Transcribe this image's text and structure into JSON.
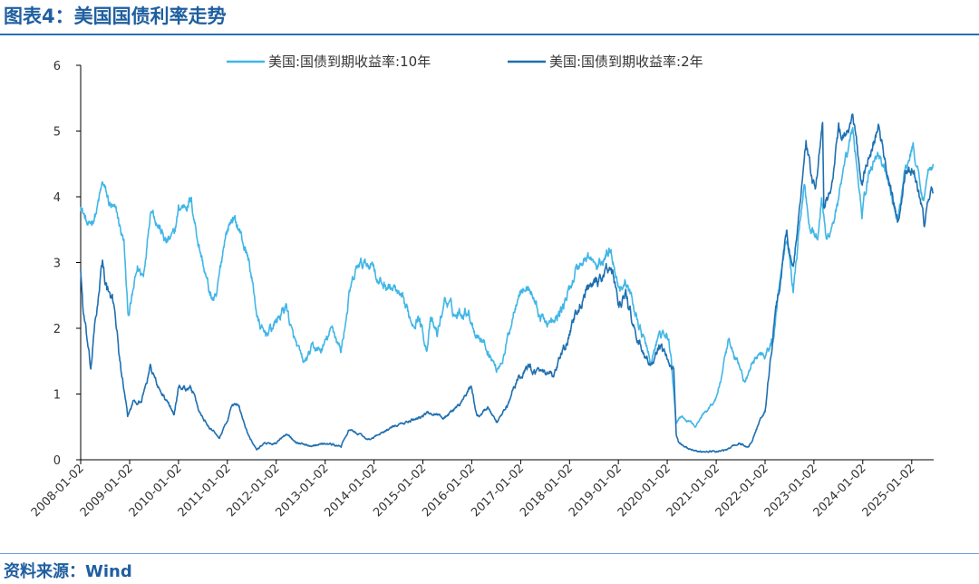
{
  "header": {
    "title": "图表4：美国国债利率走势"
  },
  "footer": {
    "source": "资料来源：Wind"
  },
  "chart_data": {
    "type": "line",
    "title": "图表4：美国国债利率走势",
    "xlabel": "",
    "ylabel": "",
    "xlim": [
      "2008-01-02",
      "2025-06-15"
    ],
    "ylim": [
      0,
      6
    ],
    "yticks": [
      0,
      1,
      2,
      3,
      4,
      5,
      6
    ],
    "xticks": [
      "2008-01-02",
      "2009-01-02",
      "2010-01-02",
      "2011-01-02",
      "2012-01-02",
      "2013-01-02",
      "2014-01-02",
      "2015-01-02",
      "2016-01-02",
      "2017-01-02",
      "2018-01-02",
      "2019-01-02",
      "2020-01-02",
      "2021-01-02",
      "2022-01-02",
      "2023-01-02",
      "2024-01-02",
      "2025-01-02"
    ],
    "grid": false,
    "legend_position": "top",
    "series": [
      {
        "name": "美国:国债到期收益率:10年",
        "color": "#41b6e6",
        "points": [
          [
            "2008-01-02",
            3.9
          ],
          [
            "2008-03-01",
            3.5
          ],
          [
            "2008-05-01",
            3.8
          ],
          [
            "2008-06-15",
            4.2
          ],
          [
            "2008-08-01",
            3.9
          ],
          [
            "2008-10-01",
            3.7
          ],
          [
            "2008-11-20",
            3.3
          ],
          [
            "2008-12-20",
            2.2
          ],
          [
            "2009-01-15",
            2.4
          ],
          [
            "2009-03-01",
            2.9
          ],
          [
            "2009-04-15",
            2.8
          ],
          [
            "2009-06-10",
            3.9
          ],
          [
            "2009-08-01",
            3.6
          ],
          [
            "2009-10-01",
            3.3
          ],
          [
            "2009-12-01",
            3.4
          ],
          [
            "2010-01-02",
            3.8
          ],
          [
            "2010-04-05",
            3.95
          ],
          [
            "2010-06-01",
            3.3
          ],
          [
            "2010-08-25",
            2.5
          ],
          [
            "2010-10-10",
            2.4
          ],
          [
            "2010-12-15",
            3.4
          ],
          [
            "2011-02-10",
            3.7
          ],
          [
            "2011-04-01",
            3.5
          ],
          [
            "2011-06-15",
            3.0
          ],
          [
            "2011-08-20",
            2.1
          ],
          [
            "2011-10-01",
            1.9
          ],
          [
            "2011-12-01",
            2.0
          ],
          [
            "2012-03-20",
            2.35
          ],
          [
            "2012-05-01",
            1.9
          ],
          [
            "2012-07-25",
            1.45
          ],
          [
            "2012-10-01",
            1.7
          ],
          [
            "2012-12-01",
            1.65
          ],
          [
            "2013-03-01",
            2.0
          ],
          [
            "2013-05-01",
            1.65
          ],
          [
            "2013-07-01",
            2.5
          ],
          [
            "2013-09-05",
            2.95
          ],
          [
            "2013-12-31",
            3.0
          ],
          [
            "2014-02-01",
            2.7
          ],
          [
            "2014-06-01",
            2.6
          ],
          [
            "2014-10-15",
            2.1
          ],
          [
            "2014-12-01",
            2.2
          ],
          [
            "2015-01-30",
            1.7
          ],
          [
            "2015-03-01",
            2.1
          ],
          [
            "2015-04-20",
            1.9
          ],
          [
            "2015-06-15",
            2.45
          ],
          [
            "2015-09-01",
            2.2
          ],
          [
            "2015-12-01",
            2.3
          ],
          [
            "2016-01-30",
            1.95
          ],
          [
            "2016-04-01",
            1.8
          ],
          [
            "2016-07-08",
            1.37
          ],
          [
            "2016-09-01",
            1.6
          ],
          [
            "2016-11-15",
            2.3
          ],
          [
            "2016-12-15",
            2.6
          ],
          [
            "2017-03-15",
            2.6
          ],
          [
            "2017-06-01",
            2.15
          ],
          [
            "2017-09-07",
            2.05
          ],
          [
            "2017-12-01",
            2.4
          ],
          [
            "2018-02-20",
            2.9
          ],
          [
            "2018-05-17",
            3.1
          ],
          [
            "2018-08-01",
            2.9
          ],
          [
            "2018-11-08",
            3.24
          ],
          [
            "2019-01-02",
            2.65
          ],
          [
            "2019-03-01",
            2.7
          ],
          [
            "2019-06-01",
            2.1
          ],
          [
            "2019-09-03",
            1.47
          ],
          [
            "2019-11-01",
            1.9
          ],
          [
            "2020-01-02",
            1.88
          ],
          [
            "2020-02-01",
            1.55
          ],
          [
            "2020-03-09",
            0.54
          ],
          [
            "2020-04-01",
            0.65
          ],
          [
            "2020-08-04",
            0.52
          ],
          [
            "2020-10-01",
            0.7
          ],
          [
            "2020-12-31",
            0.93
          ],
          [
            "2021-02-15",
            1.3
          ],
          [
            "2021-03-31",
            1.74
          ],
          [
            "2021-06-01",
            1.55
          ],
          [
            "2021-08-04",
            1.17
          ],
          [
            "2021-11-01",
            1.6
          ],
          [
            "2022-01-02",
            1.63
          ],
          [
            "2022-03-01",
            1.8
          ],
          [
            "2022-05-01",
            2.9
          ],
          [
            "2022-06-14",
            3.48
          ],
          [
            "2022-08-01",
            2.6
          ],
          [
            "2022-10-21",
            4.24
          ],
          [
            "2022-12-01",
            3.6
          ],
          [
            "2023-02-01",
            3.4
          ],
          [
            "2023-03-01",
            4.0
          ],
          [
            "2023-04-05",
            3.3
          ],
          [
            "2023-07-01",
            3.9
          ],
          [
            "2023-10-19",
            5.0
          ],
          [
            "2023-12-27",
            3.79
          ],
          [
            "2024-02-15",
            4.3
          ],
          [
            "2024-04-25",
            4.7
          ],
          [
            "2024-07-01",
            4.3
          ],
          [
            "2024-09-16",
            3.62
          ],
          [
            "2024-11-15",
            4.4
          ],
          [
            "2025-01-13",
            4.79
          ],
          [
            "2025-03-01",
            4.2
          ],
          [
            "2025-04-04",
            4.0
          ],
          [
            "2025-05-20",
            4.55
          ],
          [
            "2025-06-10",
            4.5
          ]
        ]
      },
      {
        "name": "美国:国债到期收益率:2年",
        "color": "#1f6fb0",
        "points": [
          [
            "2008-01-02",
            2.9
          ],
          [
            "2008-01-20",
            2.3
          ],
          [
            "2008-03-17",
            1.35
          ],
          [
            "2008-04-15",
            2.0
          ],
          [
            "2008-06-13",
            3.0
          ],
          [
            "2008-07-15",
            2.6
          ],
          [
            "2008-09-15",
            2.3
          ],
          [
            "2008-10-15",
            1.6
          ],
          [
            "2008-12-01",
            0.9
          ],
          [
            "2008-12-18",
            0.65
          ],
          [
            "2009-02-01",
            0.9
          ],
          [
            "2009-04-01",
            0.9
          ],
          [
            "2009-06-08",
            1.42
          ],
          [
            "2009-08-01",
            1.1
          ],
          [
            "2009-10-01",
            0.9
          ],
          [
            "2009-12-01",
            0.7
          ],
          [
            "2010-01-02",
            1.1
          ],
          [
            "2010-04-05",
            1.1
          ],
          [
            "2010-06-01",
            0.75
          ],
          [
            "2010-08-01",
            0.55
          ],
          [
            "2010-11-04",
            0.35
          ],
          [
            "2011-01-02",
            0.6
          ],
          [
            "2011-02-08",
            0.85
          ],
          [
            "2011-04-01",
            0.8
          ],
          [
            "2011-06-01",
            0.4
          ],
          [
            "2011-08-09",
            0.16
          ],
          [
            "2011-10-01",
            0.25
          ],
          [
            "2012-01-02",
            0.25
          ],
          [
            "2012-03-20",
            0.39
          ],
          [
            "2012-06-01",
            0.27
          ],
          [
            "2012-09-01",
            0.22
          ],
          [
            "2013-01-02",
            0.25
          ],
          [
            "2013-05-01",
            0.2
          ],
          [
            "2013-06-25",
            0.45
          ],
          [
            "2013-09-01",
            0.4
          ],
          [
            "2013-12-01",
            0.3
          ],
          [
            "2014-04-01",
            0.45
          ],
          [
            "2014-09-15",
            0.58
          ],
          [
            "2014-12-31",
            0.67
          ],
          [
            "2015-03-06",
            0.72
          ],
          [
            "2015-06-15",
            0.65
          ],
          [
            "2015-09-15",
            0.8
          ],
          [
            "2015-12-29",
            1.09
          ],
          [
            "2016-02-11",
            0.65
          ],
          [
            "2016-05-01",
            0.8
          ],
          [
            "2016-07-06",
            0.55
          ],
          [
            "2016-10-01",
            0.85
          ],
          [
            "2016-12-15",
            1.27
          ],
          [
            "2017-03-14",
            1.4
          ],
          [
            "2017-06-01",
            1.3
          ],
          [
            "2017-09-07",
            1.27
          ],
          [
            "2017-12-29",
            1.89
          ],
          [
            "2018-03-01",
            2.27
          ],
          [
            "2018-05-17",
            2.57
          ],
          [
            "2018-08-01",
            2.67
          ],
          [
            "2018-11-08",
            2.97
          ],
          [
            "2019-01-03",
            2.39
          ],
          [
            "2019-03-01",
            2.5
          ],
          [
            "2019-06-01",
            1.75
          ],
          [
            "2019-09-03",
            1.43
          ],
          [
            "2019-11-01",
            1.65
          ],
          [
            "2020-01-02",
            1.57
          ],
          [
            "2020-02-20",
            1.35
          ],
          [
            "2020-03-09",
            0.38
          ],
          [
            "2020-04-01",
            0.25
          ],
          [
            "2020-06-01",
            0.18
          ],
          [
            "2020-09-01",
            0.13
          ],
          [
            "2020-12-31",
            0.12
          ],
          [
            "2021-03-31",
            0.16
          ],
          [
            "2021-06-17",
            0.25
          ],
          [
            "2021-09-01",
            0.2
          ],
          [
            "2021-10-01",
            0.3
          ],
          [
            "2021-12-15",
            0.7
          ],
          [
            "2022-01-02",
            0.75
          ],
          [
            "2022-02-15",
            1.6
          ],
          [
            "2022-04-01",
            2.4
          ],
          [
            "2022-06-14",
            3.4
          ],
          [
            "2022-08-01",
            2.9
          ],
          [
            "2022-11-04",
            4.8
          ],
          [
            "2022-12-15",
            4.3
          ],
          [
            "2023-01-15",
            4.1
          ],
          [
            "2023-03-08",
            5.07
          ],
          [
            "2023-03-17",
            3.8
          ],
          [
            "2023-05-01",
            4.0
          ],
          [
            "2023-07-06",
            5.0
          ],
          [
            "2023-09-01",
            4.9
          ],
          [
            "2023-10-19",
            5.22
          ],
          [
            "2023-12-27",
            4.2
          ],
          [
            "2024-02-15",
            4.6
          ],
          [
            "2024-04-30",
            5.04
          ],
          [
            "2024-06-01",
            4.7
          ],
          [
            "2024-09-24",
            3.55
          ],
          [
            "2024-11-15",
            4.3
          ],
          [
            "2025-01-13",
            4.4
          ],
          [
            "2025-03-01",
            4.0
          ],
          [
            "2025-04-04",
            3.6
          ],
          [
            "2025-05-01",
            3.9
          ],
          [
            "2025-06-10",
            4.05
          ]
        ]
      }
    ]
  }
}
